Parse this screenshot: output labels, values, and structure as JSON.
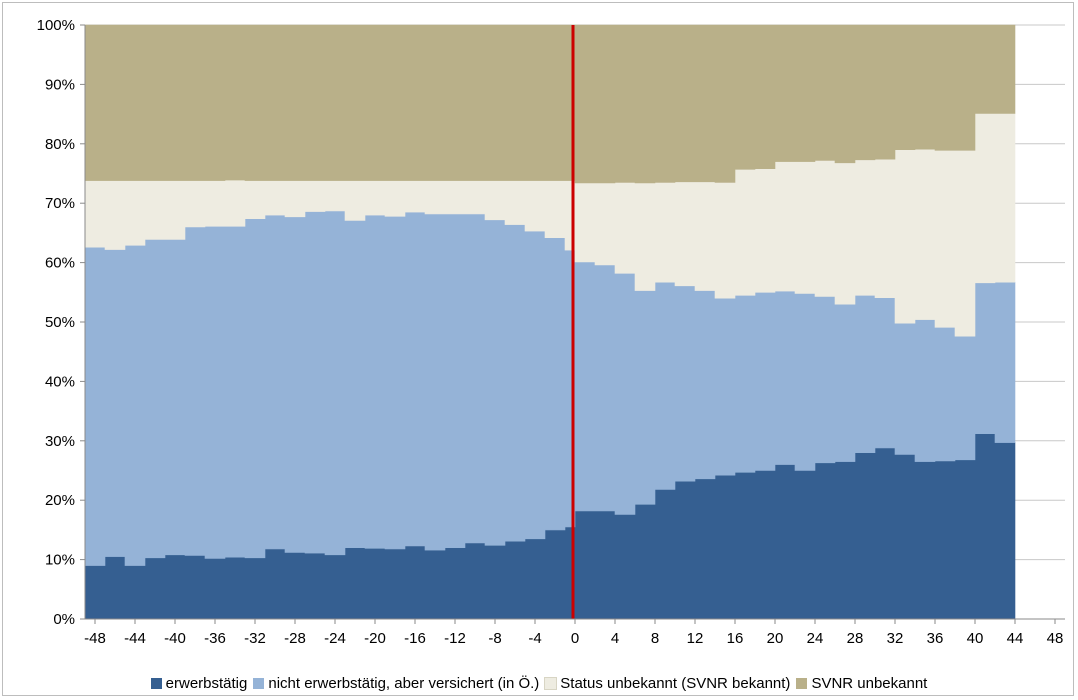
{
  "chart_data": {
    "type": "area",
    "stacked": true,
    "step": true,
    "percent_stacked": true,
    "x": [
      -48,
      -47,
      -46,
      -45,
      -44,
      -43,
      -42,
      -41,
      -40,
      -39,
      -38,
      -37,
      -36,
      -35,
      -34,
      -33,
      -32,
      -31,
      -30,
      -29,
      -28,
      -27,
      -26,
      -25,
      -24,
      -23,
      -22,
      -21,
      -20,
      -19,
      -18,
      -17,
      -16,
      -15,
      -14,
      -13,
      -12,
      -11,
      -10,
      -9,
      -8,
      -7,
      -6,
      -5,
      -4,
      -3,
      -2,
      -1,
      0,
      1,
      2,
      3,
      4,
      5,
      6,
      7,
      8,
      9,
      10,
      11,
      12,
      13,
      14,
      15,
      16,
      17,
      18,
      19,
      20,
      21,
      22,
      23,
      24,
      25,
      26,
      27,
      28,
      29,
      30,
      31,
      32,
      33,
      34,
      35,
      36,
      37,
      38,
      39,
      40,
      41,
      42,
      43,
      44
    ],
    "series": [
      {
        "name": "erwerbstätig",
        "color": "#355f91",
        "values": [
          9,
          9,
          10.5,
          10.5,
          9,
          9,
          10.3,
          10.3,
          10.8,
          10.8,
          10.7,
          10.7,
          10.2,
          10.2,
          10.4,
          10.4,
          10.3,
          10.3,
          11.8,
          11.8,
          11.2,
          11.2,
          11.1,
          11.1,
          10.8,
          10.8,
          12,
          12,
          11.9,
          11.9,
          11.8,
          11.8,
          12.3,
          12.3,
          11.6,
          11.6,
          12,
          12,
          12.8,
          12.8,
          12.4,
          12.4,
          13.1,
          13.1,
          13.5,
          13.5,
          15,
          15,
          15.5,
          18.2,
          18.2,
          18.2,
          18.2,
          17.6,
          17.6,
          19.3,
          19.3,
          21.8,
          21.8,
          23.2,
          23.2,
          23.6,
          23.6,
          24.2,
          24.2,
          24.7,
          24.7,
          25,
          25,
          26,
          26,
          25,
          25,
          26.3,
          26.3,
          26.5,
          26.5,
          28,
          28,
          28.8,
          28.8,
          27.7,
          27.7,
          26.5,
          26.5,
          26.6,
          26.6,
          26.8,
          26.8,
          31.2,
          31.2,
          29.7,
          29.7
        ]
      },
      {
        "name": "nicht erwerbstätig, aber versichert (in Ö.)",
        "color": "#95b3d7",
        "values": [
          53.6,
          53.6,
          51.7,
          51.7,
          53.9,
          53.9,
          53.6,
          53.6,
          53.1,
          53.1,
          55.3,
          55.3,
          55.9,
          55.9,
          55.7,
          55.7,
          57.1,
          57.1,
          56.2,
          56.2,
          56.5,
          56.5,
          57.5,
          57.5,
          57.9,
          57.9,
          55.1,
          55.1,
          56.1,
          56.1,
          56,
          56,
          56.2,
          56.2,
          56.6,
          56.6,
          56.2,
          56.2,
          55.4,
          55.4,
          54.8,
          54.8,
          53.3,
          53.3,
          51.8,
          51.8,
          49.2,
          49.2,
          46.6,
          41.9,
          41.9,
          41.4,
          41.4,
          40.6,
          40.6,
          36,
          36,
          34.9,
          34.9,
          32.9,
          32.9,
          31.7,
          31.7,
          29.8,
          29.8,
          29.8,
          29.8,
          30,
          30,
          29.2,
          29.2,
          29.8,
          29.8,
          28,
          28,
          26.5,
          26.5,
          26.5,
          26.5,
          25.3,
          25.3,
          22.1,
          22.1,
          23.9,
          23.9,
          22.5,
          22.5,
          20.8,
          20.8,
          25.4,
          25.4,
          27,
          27
        ]
      },
      {
        "name": "Status unbekannt (SVNR bekannt)",
        "color": "#eeece1",
        "values": [
          11.2,
          11.2,
          11.6,
          11.6,
          10.9,
          10.9,
          9.9,
          9.9,
          9.9,
          9.9,
          7.8,
          7.8,
          7.7,
          7.7,
          7.8,
          7.8,
          6.4,
          6.4,
          5.8,
          5.8,
          6.1,
          6.1,
          5.2,
          5.2,
          5.1,
          5.1,
          6.7,
          6.7,
          5.8,
          5.8,
          6,
          6,
          5.3,
          5.3,
          5.6,
          5.6,
          5.6,
          5.6,
          5.6,
          5.6,
          6.6,
          6.6,
          7.4,
          7.4,
          8.5,
          8.5,
          9.6,
          9.6,
          11.7,
          13.3,
          13.3,
          13.8,
          13.8,
          15.3,
          15.3,
          18.1,
          18.1,
          16.8,
          16.8,
          17.5,
          17.5,
          18.3,
          18.3,
          19.5,
          19.5,
          21.2,
          21.2,
          20.8,
          20.8,
          21.8,
          21.8,
          22.2,
          22.2,
          22.9,
          22.9,
          23.8,
          23.8,
          22.8,
          22.8,
          23.3,
          23.3,
          29.2,
          29.2,
          28.7,
          28.7,
          29.8,
          29.8,
          31.3,
          31.3,
          28.5,
          28.5,
          28.4,
          28.4
        ]
      },
      {
        "name": "SVNR unbekannt",
        "color": "#b9b089",
        "values": [
          26.2,
          26.2,
          26.2,
          26.2,
          26.2,
          26.2,
          26.2,
          26.2,
          26.2,
          26.2,
          26.2,
          26.2,
          26.2,
          26.2,
          26.1,
          26.1,
          26.2,
          26.2,
          26.2,
          26.2,
          26.2,
          26.2,
          26.2,
          26.2,
          26.2,
          26.2,
          26.2,
          26.2,
          26.2,
          26.2,
          26.2,
          26.2,
          26.2,
          26.2,
          26.2,
          26.2,
          26.2,
          26.2,
          26.2,
          26.2,
          26.2,
          26.2,
          26.2,
          26.2,
          26.2,
          26.2,
          26.2,
          26.2,
          26.2,
          26.6,
          26.6,
          26.6,
          26.6,
          26.5,
          26.5,
          26.6,
          26.6,
          26.5,
          26.5,
          26.4,
          26.4,
          26.4,
          26.4,
          26.5,
          26.5,
          24.3,
          24.3,
          24.2,
          24.2,
          23,
          23,
          23,
          23,
          22.8,
          22.8,
          23.2,
          23.2,
          22.7,
          22.7,
          22.6,
          22.6,
          21,
          21,
          20.9,
          20.9,
          21.1,
          21.1,
          21.1,
          21.1,
          14.9,
          14.9,
          14.9,
          14.9
        ]
      }
    ],
    "xticks": [
      -48,
      -44,
      -40,
      -36,
      -32,
      -28,
      -24,
      -20,
      -16,
      -12,
      -8,
      -4,
      0,
      4,
      8,
      12,
      16,
      20,
      24,
      28,
      32,
      36,
      40,
      44,
      48
    ],
    "yticks": [
      0,
      10,
      20,
      30,
      40,
      50,
      60,
      70,
      80,
      90,
      100
    ],
    "ytick_labels": [
      "0%",
      "10%",
      "20%",
      "30%",
      "40%",
      "50%",
      "60%",
      "70%",
      "80%",
      "90%",
      "100%"
    ],
    "xlim": [
      -49,
      49
    ],
    "ylim": [
      0,
      100
    ],
    "reference_line": {
      "x": -0.2,
      "color": "#cc0000"
    },
    "grid": "y",
    "legend_position": "bottom",
    "gridline_color": "#c8c8c8"
  }
}
